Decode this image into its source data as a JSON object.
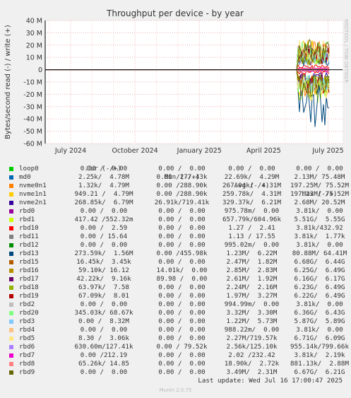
{
  "chart_data": {
    "type": "line",
    "title": "Throughput per device - by year",
    "ylabel": "Bytes/second read (-) / write (+)",
    "watermark": "RRDTOOL / TOBI OETIKER",
    "ylim": [
      -60000000,
      40000000
    ],
    "y_ticks": [
      40000000,
      30000000,
      20000000,
      10000000,
      0,
      -10000000,
      -20000000,
      -30000000,
      -40000000,
      -50000000,
      -60000000
    ],
    "y_tick_labels": [
      "40 M",
      "30 M",
      "20 M",
      "10 M",
      "0",
      "-10 M",
      "-20 M",
      "-30 M",
      "-40 M",
      "-50 M",
      "-60 M"
    ],
    "x_tick_labels": [
      "July 2024",
      "October 2024",
      "January 2025",
      "April 2025",
      "July 2025"
    ],
    "grid": true,
    "legend_header": {
      "cur": "Cur (-/+)",
      "min": "Min (-/+)",
      "avg": "Avg (-/+)",
      "max": "Max (-/+)"
    },
    "series": [
      {
        "name": "loop0",
        "color": "#00cc00",
        "cur": "0.00 /  0.00",
        "min": "0.00 /  0.00",
        "avg": "0.00 /  0.00",
        "max": "0.00 /  0.00"
      },
      {
        "name": "md0",
        "color": "#0066b3",
        "cur": "2.25k/  4.78M",
        "min": "0.00 /277.43k",
        "avg": "22.69k/  4.29M",
        "max": "2.13M/ 75.48M"
      },
      {
        "name": "nvme0n1",
        "color": "#ff8000",
        "cur": "1.32k/  4.79M",
        "min": "0.00 /288.90k",
        "avg": "267.04k/  4.31M",
        "max": "197.25M/ 75.52M"
      },
      {
        "name": "nvme1n1",
        "color": "#ffcc00",
        "cur": "949.21 /  4.79M",
        "min": "0.00 /288.90k",
        "avg": "259.78k/  4.31M",
        "max": "197.23M/ 75.52M"
      },
      {
        "name": "nvme2n1",
        "color": "#330099",
        "cur": "268.85k/  6.79M",
        "min": "26.91k/719.41k",
        "avg": "329.37k/  6.21M",
        "max": "2.68M/ 20.52M"
      },
      {
        "name": "rbd0",
        "color": "#990099",
        "cur": "0.00 /  0.00",
        "min": "0.00 /  0.00",
        "avg": "975.78m/  0.00",
        "max": "3.81k/  0.00"
      },
      {
        "name": "rbd1",
        "color": "#ccff00",
        "cur": "417.42 /552.32m",
        "min": "0.00 /  0.00",
        "avg": "657.79k/604.96k",
        "max": "5.51G/  5.55G"
      },
      {
        "name": "rbd10",
        "color": "#ff0000",
        "cur": "0.00 /  2.59",
        "min": "0.00 /  0.00",
        "avg": "1.27 /  2.41",
        "max": "3.81k/432.92"
      },
      {
        "name": "rbd11",
        "color": "#808080",
        "cur": "0.00 / 15.64",
        "min": "0.00 /  0.00",
        "avg": "1.13 / 17.55",
        "max": "3.81k/  1.77k"
      },
      {
        "name": "rbd12",
        "color": "#008f00",
        "cur": "0.00 /  0.00",
        "min": "0.00 /  0.00",
        "avg": "995.02m/  0.00",
        "max": "3.81k/  0.00"
      },
      {
        "name": "rbd13",
        "color": "#00487d",
        "cur": "273.59k/  1.56M",
        "min": "0.00 /455.98k",
        "avg": "1.23M/  6.22M",
        "max": "80.88M/ 64.41M"
      },
      {
        "name": "rbd15",
        "color": "#b35a00",
        "cur": "16.45k/  3.45k",
        "min": "0.00 /  0.00",
        "avg": "2.47M/  1.82M",
        "max": "6.68G/  6.44G"
      },
      {
        "name": "rbd16",
        "color": "#b38f00",
        "cur": "59.10k/ 16.12",
        "min": "14.01k/  0.00",
        "avg": "2.85M/  2.83M",
        "max": "6.25G/  6.49G"
      },
      {
        "name": "rbd17",
        "color": "#6b006b",
        "cur": "42.22k/  9.16k",
        "min": "89.98 /  0.00",
        "avg": "2.61M/  1.92M",
        "max": "6.16G/  6.17G"
      },
      {
        "name": "rbd18",
        "color": "#8fb300",
        "cur": "63.97k/  7.58",
        "min": "0.00 /  0.00",
        "avg": "2.24M/  2.16M",
        "max": "6.23G/  6.49G"
      },
      {
        "name": "rbd19",
        "color": "#b30000",
        "cur": "67.09k/  8.01",
        "min": "0.00 /  0.00",
        "avg": "1.97M/  3.27M",
        "max": "6.22G/  6.49G"
      },
      {
        "name": "rbd2",
        "color": "#bebebe",
        "cur": "0.00 /  0.00",
        "min": "0.00 /  0.00",
        "avg": "994.99m/  0.00",
        "max": "3.81k/  0.00"
      },
      {
        "name": "rbd20",
        "color": "#80ff80",
        "cur": "345.03k/ 68.67k",
        "min": "0.00 /  0.00",
        "avg": "3.32M/  3.30M",
        "max": "6.36G/  6.43G"
      },
      {
        "name": "rbd3",
        "color": "#80c9ff",
        "cur": "0.00 /  8.32M",
        "min": "0.00 /  0.00",
        "avg": "1.22M/  5.73M",
        "max": "5.87G/  5.89G"
      },
      {
        "name": "rbd4",
        "color": "#ffc080",
        "cur": "0.00 /  0.00",
        "min": "0.00 /  0.00",
        "avg": "988.22m/  0.00",
        "max": "3.81k/  0.00"
      },
      {
        "name": "rbd5",
        "color": "#ffe680",
        "cur": "8.30 /  3.06k",
        "min": "0.00 /  0.00",
        "avg": "2.27M/719.57k",
        "max": "6.71G/  6.09G"
      },
      {
        "name": "rbd6",
        "color": "#aa80ff",
        "cur": "630.60m/127.41k",
        "min": "0.00 / 79.52k",
        "avg": "2.56k/125.10k",
        "max": "955.14k/799.66k"
      },
      {
        "name": "rbd7",
        "color": "#ee00cc",
        "cur": "0.00 /212.19",
        "min": "0.00 /  0.00",
        "avg": "2.02 /232.42",
        "max": "3.81k/  2.19k"
      },
      {
        "name": "rbd8",
        "color": "#ff8080",
        "cur": "65.26k/ 14.85",
        "min": "0.00 /  0.00",
        "avg": "18.90k/  2.72k",
        "max": "881.13k/  2.88M"
      },
      {
        "name": "rbd9",
        "color": "#666600",
        "cur": "0.00 /  0.00",
        "min": "0.00 /  0.00",
        "avg": "3.49M/  2.31M",
        "max": "6.67G/  6.21G"
      }
    ],
    "last_update": "Last update: Wed Jul 16 17:00:47 2025",
    "footer": "Munin 2.0.75"
  }
}
